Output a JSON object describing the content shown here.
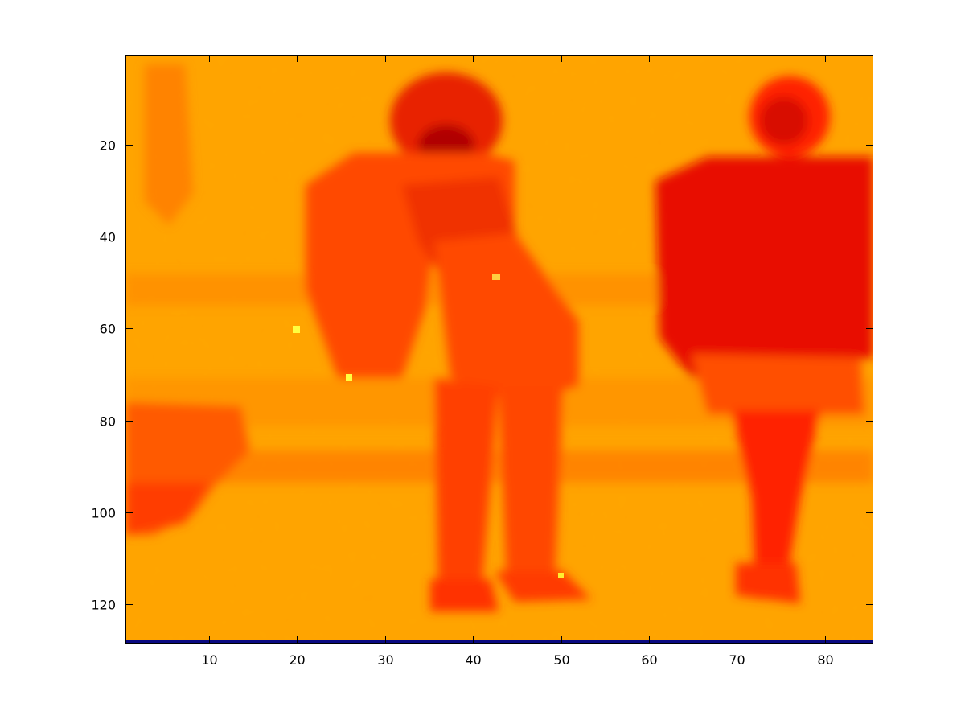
{
  "chart_data": {
    "type": "heatmap",
    "title": "",
    "xlabel": "",
    "ylabel": "",
    "colormap": "hot",
    "image_columns": 85,
    "image_rows": 128,
    "xlim": [
      0.5,
      85.5
    ],
    "ylim": [
      0.5,
      128.5
    ],
    "y_direction": "reverse",
    "grid": false,
    "x_ticks": [
      10,
      20,
      30,
      40,
      50,
      60,
      70,
      80
    ],
    "x_tick_labels": [
      "10",
      "20",
      "30",
      "40",
      "50",
      "60",
      "70",
      "80"
    ],
    "y_ticks": [
      20,
      40,
      60,
      80,
      100,
      120
    ],
    "y_tick_labels": [
      "20",
      "40",
      "60",
      "80",
      "100",
      "120"
    ],
    "bottom_row_color": "#0a0a80",
    "background_color": "#ffa500",
    "regions": [
      {
        "name": "left-person",
        "color": "#ff4a00",
        "x": [
          24,
          54
        ],
        "y": [
          5,
          121
        ]
      },
      {
        "name": "right-person",
        "color": "#e80e00",
        "x": [
          60,
          85
        ],
        "y": [
          5,
          122
        ]
      },
      {
        "name": "left-strip",
        "color": "#ff5a00",
        "x": [
          1,
          14
        ],
        "y": [
          76,
          104
        ]
      }
    ]
  }
}
